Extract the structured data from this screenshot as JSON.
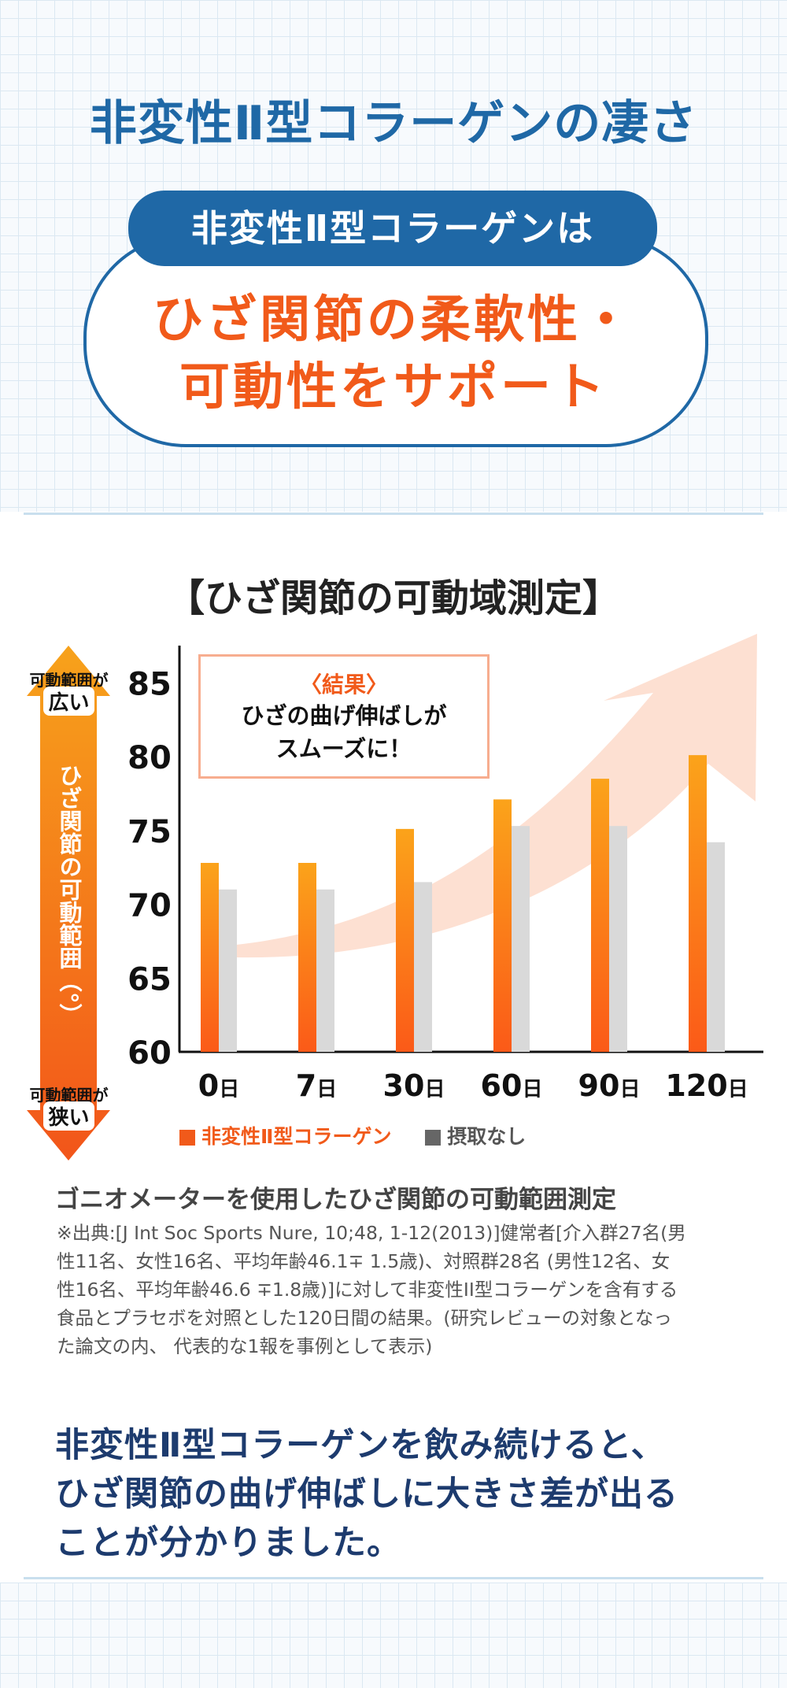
{
  "header": {
    "title": "非変性Ⅱ型コラーゲンの凄さ",
    "pill": "非変性Ⅱ型コラーゲンは",
    "claim_lines": [
      "ひざ関節の柔軟性・",
      "可動性をサポート"
    ]
  },
  "section_title": "【ひざ関節の可動域測定】",
  "side_arrow": {
    "top_label": "可動範囲が",
    "top_emphasis": "広い",
    "axis_label": "ひざ関節の可動範囲（°）",
    "bottom_label": "可動範囲が",
    "bottom_emphasis": "狭い"
  },
  "result_box": {
    "heading": "〈結果〉",
    "lines": [
      "ひざの曲げ伸ばしが",
      "スムーズに！"
    ]
  },
  "chart_data": {
    "type": "bar",
    "categories": [
      "0",
      "7",
      "30",
      "60",
      "90",
      "120"
    ],
    "category_suffix": "日",
    "ylabel": "ひざ関節の可動範囲（°）",
    "ylim": [
      60,
      86
    ],
    "yticks": [
      60,
      65,
      70,
      75,
      80,
      85
    ],
    "grid": false,
    "legend_position": "bottom",
    "series": [
      {
        "name": "非変性Ⅱ型コラーゲン",
        "color": "#f26a10",
        "values": [
          72.8,
          72.8,
          75.1,
          77.1,
          78.5,
          80.1
        ]
      },
      {
        "name": "摂取なし",
        "color": "#d9d9d9",
        "legend_color": "#666666",
        "values": [
          71.0,
          71.0,
          71.5,
          75.3,
          75.3,
          74.2
        ]
      }
    ]
  },
  "study": {
    "heading": "ゴニオメーターを使用したひざ関節の可動範囲測定",
    "citation_lines": [
      "※出典:[J Int Soc Sports Nure, 10;48, 1-12(2013)]健常者[介入群27名(男",
      "性11名、女性16名、平均年齢46.1∓ 1.5歳)、対照群28名 (男性12名、女",
      "性16名、平均年齢46.6 ∓1.8歳)]に対して非変性II型コラーゲンを含有する",
      "食品とプラセボを対照とした120日間の結果。(研究レビューの対象となっ",
      "た論文の内、 代表的な1報を事例として表示)"
    ]
  },
  "conclusion_lines": [
    "非変性Ⅱ型コラーゲンを飲み続けると、",
    "ひざ関節の曲げ伸ばしに大きさ差が出る",
    "ことが分かりました。"
  ],
  "colors": {
    "blue": "#1f68a6",
    "orange": "#f15a1a",
    "navy": "#1d3b6e"
  }
}
